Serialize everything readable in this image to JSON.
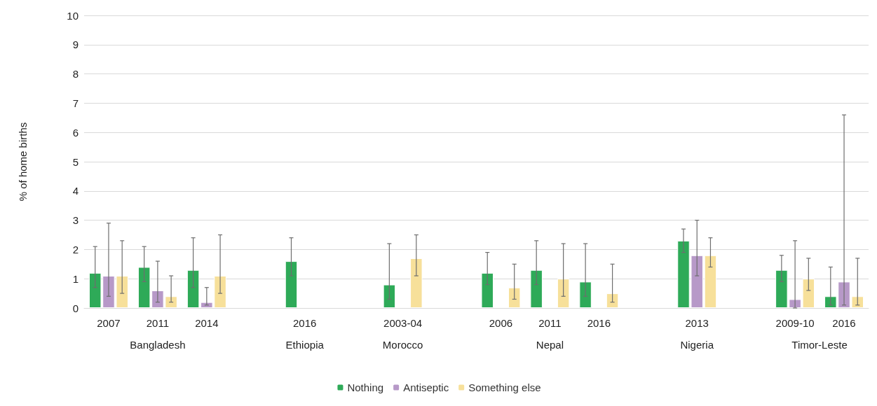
{
  "chart_data": {
    "type": "bar",
    "ylabel": "% of home births",
    "categories": [
      "2007",
      "2011",
      "2014",
      null,
      "2016",
      null,
      "2003-04",
      null,
      "2006",
      "2011",
      "2016",
      null,
      "2013",
      null,
      "2009-10",
      "2016"
    ],
    "series": [
      {
        "name": "Nothing",
        "color": "#2eaa58",
        "values": [
          1.2,
          1.4,
          1.3,
          null,
          1.6,
          null,
          0.8,
          null,
          1.2,
          1.3,
          0.9,
          null,
          2.3,
          null,
          1.3,
          0.4
        ],
        "errors": [
          [
            0.7,
            2.1
          ],
          [
            0.9,
            2.1
          ],
          [
            0.7,
            2.4
          ],
          null,
          [
            1.1,
            2.4
          ],
          null,
          [
            0.3,
            2.2
          ],
          null,
          [
            0.8,
            1.9
          ],
          [
            0.8,
            2.3
          ],
          [
            0.4,
            2.2
          ],
          null,
          [
            1.9,
            2.7
          ],
          null,
          [
            0.9,
            1.8
          ],
          [
            0.1,
            1.4
          ]
        ]
      },
      {
        "name": "Antiseptic",
        "color": "#b799c8",
        "values": [
          1.1,
          0.6,
          0.2,
          null,
          null,
          null,
          null,
          null,
          null,
          null,
          null,
          null,
          1.8,
          null,
          0.3,
          0.9
        ],
        "errors": [
          [
            0.4,
            2.9
          ],
          [
            0.2,
            1.6
          ],
          [
            0.1,
            0.7
          ],
          null,
          null,
          null,
          null,
          null,
          null,
          null,
          null,
          null,
          [
            1.1,
            3.0
          ],
          null,
          [
            0.0,
            2.3
          ],
          [
            0.1,
            6.6
          ]
        ]
      },
      {
        "name": "Something else",
        "color": "#f7e09a",
        "values": [
          1.1,
          0.4,
          1.1,
          null,
          null,
          null,
          1.7,
          null,
          0.7,
          1.0,
          0.5,
          null,
          1.8,
          null,
          1.0,
          0.4
        ],
        "errors": [
          [
            0.5,
            2.3
          ],
          [
            0.2,
            1.1
          ],
          [
            0.5,
            2.5
          ],
          null,
          null,
          null,
          [
            1.1,
            2.5
          ],
          null,
          [
            0.3,
            1.5
          ],
          [
            0.4,
            2.2
          ],
          [
            0.2,
            1.5
          ],
          null,
          [
            1.4,
            2.4
          ],
          null,
          [
            0.6,
            1.7
          ],
          [
            0.1,
            1.7
          ]
        ]
      }
    ],
    "ylim": [
      0,
      10
    ],
    "yticks": [
      0,
      1,
      2,
      3,
      4,
      5,
      6,
      7,
      8,
      9,
      10
    ],
    "grid": "y",
    "legend": "bottom",
    "annotations": [
      "Bangladesh",
      "Ethiopia",
      "Morocco",
      "Nepal",
      "Nigeria",
      "Timor-Leste"
    ]
  }
}
